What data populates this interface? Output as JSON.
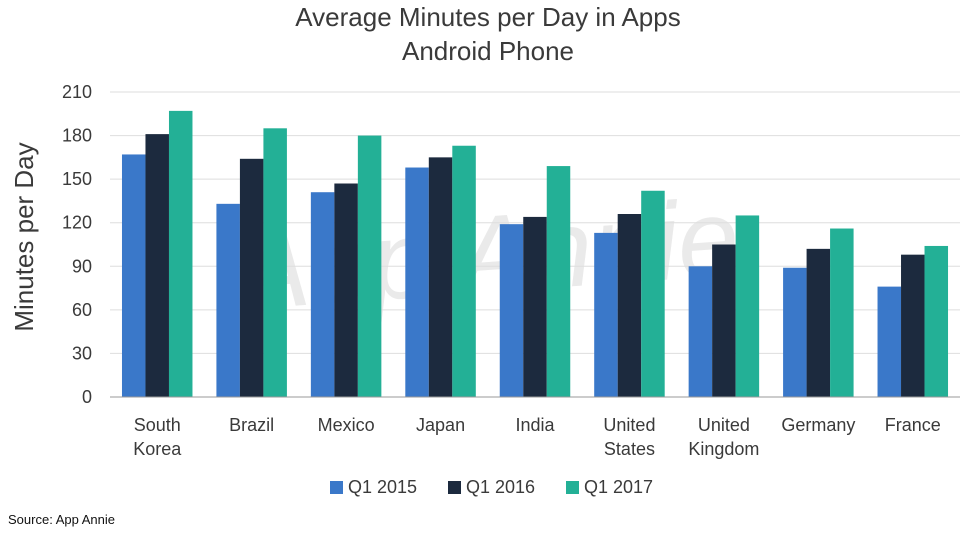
{
  "watermark": "App Annie",
  "source_note": "Source: App Annie",
  "colors": {
    "gridline": "#dedede",
    "axis": "#999999",
    "text": "#3a3a3a"
  },
  "chart_data": {
    "type": "bar",
    "title": "Average Minutes per Day in Apps",
    "subtitle": "Android Phone",
    "xlabel": "",
    "ylabel": "Minutes per Day",
    "ylim": [
      0,
      210
    ],
    "yticks": [
      0,
      30,
      60,
      90,
      120,
      150,
      180,
      210
    ],
    "grid": true,
    "legend_position": "bottom",
    "categories": [
      [
        "South",
        "Korea"
      ],
      [
        "Brazil"
      ],
      [
        "Mexico"
      ],
      [
        "Japan"
      ],
      [
        "India"
      ],
      [
        "United",
        "States"
      ],
      [
        "United",
        "Kingdom"
      ],
      [
        "Germany"
      ],
      [
        "France"
      ]
    ],
    "series": [
      {
        "name": "Q1 2015",
        "color": "#3a78c9",
        "values": [
          167,
          133,
          141,
          158,
          119,
          113,
          90,
          89,
          76
        ]
      },
      {
        "name": "Q1 2016",
        "color": "#1c2a3e",
        "values": [
          181,
          164,
          147,
          165,
          124,
          126,
          105,
          102,
          98
        ]
      },
      {
        "name": "Q1 2017",
        "color": "#23b096",
        "values": [
          197,
          185,
          180,
          173,
          159,
          142,
          125,
          116,
          104
        ]
      }
    ]
  }
}
